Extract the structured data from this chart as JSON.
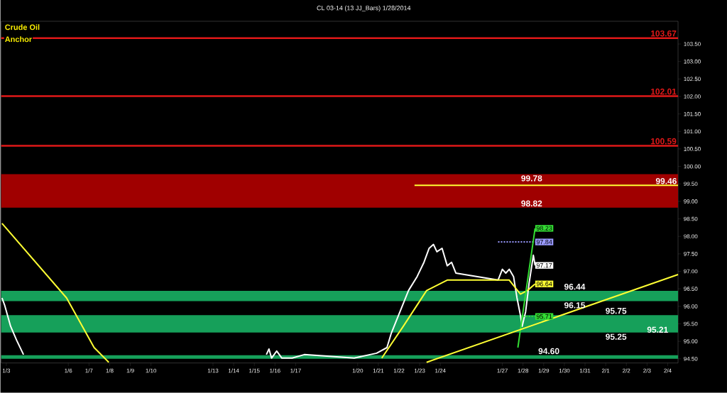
{
  "chart_data": {
    "type": "line",
    "title": "CL 03-14 (13 JJ_Bars)  1/28/2014",
    "xlim": [
      "2014-01-02T18:00",
      "2014-02-04T12:00"
    ],
    "ylim": [
      94.38,
      104.15
    ],
    "xticks": [
      {
        "value": "2014-01-03",
        "label": "1/3"
      },
      {
        "value": "2014-01-06",
        "label": "1/6"
      },
      {
        "value": "2014-01-07",
        "label": "1/7"
      },
      {
        "value": "2014-01-08",
        "label": "1/8"
      },
      {
        "value": "2014-01-09",
        "label": "1/9"
      },
      {
        "value": "2014-01-10",
        "label": "1/10"
      },
      {
        "value": "2014-01-13",
        "label": "1/13"
      },
      {
        "value": "2014-01-14",
        "label": "1/14"
      },
      {
        "value": "2014-01-15",
        "label": "1/15"
      },
      {
        "value": "2014-01-16",
        "label": "1/16"
      },
      {
        "value": "2014-01-17",
        "label": "1/17"
      },
      {
        "value": "2014-01-20",
        "label": "1/20"
      },
      {
        "value": "2014-01-21",
        "label": "1/21"
      },
      {
        "value": "2014-01-22",
        "label": "1/22"
      },
      {
        "value": "2014-01-23",
        "label": "1/23"
      },
      {
        "value": "2014-01-24",
        "label": "1/24"
      },
      {
        "value": "2014-01-27",
        "label": "1/27"
      },
      {
        "value": "2014-01-28",
        "label": "1/28"
      },
      {
        "value": "2014-01-29",
        "label": "1/29"
      },
      {
        "value": "2014-01-30",
        "label": "1/30"
      },
      {
        "value": "2014-01-31",
        "label": "1/31"
      },
      {
        "value": "2014-02-01",
        "label": "2/1"
      },
      {
        "value": "2014-02-02",
        "label": "2/2"
      },
      {
        "value": "2014-02-03",
        "label": "2/3"
      },
      {
        "value": "2014-02-04",
        "label": "2/4"
      }
    ],
    "yticks": [
      {
        "value": 94.5,
        "label": "94.50"
      },
      {
        "value": 95.0,
        "label": "95.00"
      },
      {
        "value": 95.5,
        "label": "95.50"
      },
      {
        "value": 96.0,
        "label": "96.00"
      },
      {
        "value": 96.5,
        "label": "96.50"
      },
      {
        "value": 97.0,
        "label": "97.00"
      },
      {
        "value": 97.5,
        "label": "97.50"
      },
      {
        "value": 98.0,
        "label": "98.00"
      },
      {
        "value": 98.5,
        "label": "98.50"
      },
      {
        "value": 99.0,
        "label": "99.00"
      },
      {
        "value": 99.5,
        "label": "99.50"
      },
      {
        "value": 100.0,
        "label": "100.00"
      },
      {
        "value": 100.5,
        "label": "100.50"
      },
      {
        "value": 101.0,
        "label": "101.00"
      },
      {
        "value": 101.5,
        "label": "101.50"
      },
      {
        "value": 102.0,
        "label": "102.00"
      },
      {
        "value": 102.5,
        "label": "102.50"
      },
      {
        "value": 103.0,
        "label": "103.00"
      },
      {
        "value": 103.5,
        "label": "103.50"
      }
    ],
    "series": [
      {
        "color": "#ffffff",
        "x": [
          "2014-01-02T19:00",
          "2014-01-02T22:00",
          "2014-01-03T05:00",
          "2014-01-03T12:00",
          "2014-01-03T20:00",
          "2014-01-10T00:00",
          "2014-01-15T14:00",
          "2014-01-15T17:00",
          "2014-01-15T20:00",
          "2014-01-16T02:00",
          "2014-01-16T08:00",
          "2014-01-16T20:00",
          "2014-01-17T10:00",
          "2014-01-19T20:00",
          "2014-01-20T22:00",
          "2014-01-21T10:00",
          "2014-01-21T15:00",
          "2014-01-22T01:00",
          "2014-01-22T11:00",
          "2014-01-22T21:00",
          "2014-01-23T05:00",
          "2014-01-23T11:00",
          "2014-01-23T16:00",
          "2014-01-23T20:00",
          "2014-01-24T02:00",
          "2014-01-24T08:00",
          "2014-01-24T13:00",
          "2014-01-24T18:00",
          "2014-01-26T19:00",
          "2014-01-27T00:00",
          "2014-01-27T04:00",
          "2014-01-27T08:00",
          "2014-01-27T13:00",
          "2014-01-27T17:00",
          "2014-01-27T21:00",
          "2014-01-27T23:00",
          "2014-01-28T01:00",
          "2014-01-28T03:00",
          "2014-01-28T07:00",
          "2014-01-28T12:00",
          "2014-01-28T14:00"
        ],
        "values": [
          96.24,
          96.04,
          95.43,
          95.03,
          94.62,
          null,
          94.62,
          94.78,
          94.52,
          94.72,
          94.52,
          94.52,
          94.62,
          94.52,
          94.66,
          94.82,
          95.23,
          95.84,
          96.45,
          96.85,
          97.26,
          97.66,
          97.77,
          97.56,
          97.66,
          97.16,
          97.26,
          96.95,
          96.75,
          97.06,
          96.95,
          97.06,
          96.85,
          96.24,
          95.74,
          95.43,
          95.64,
          95.84,
          96.65,
          97.46,
          97.17
        ],
        "value_labels": [
          null,
          null,
          null,
          null,
          null,
          null,
          null,
          null,
          null,
          null,
          null,
          null,
          null,
          null,
          null,
          null,
          null,
          null,
          null,
          null,
          null,
          null,
          null,
          null,
          null,
          null,
          null,
          null,
          null,
          null,
          null,
          null,
          null,
          null,
          null,
          null,
          null,
          null,
          null,
          null,
          "97.17"
        ]
      },
      {
        "color": "#ffff33",
        "x": [
          "2014-01-02T19:00",
          "2014-01-05T22:00",
          "2014-01-07T06:00",
          "2014-01-07T23:00",
          "2014-01-12T00:00",
          "2014-01-21T04:00",
          "2014-01-22T05:00",
          "2014-01-23T08:00",
          "2014-01-24T08:00",
          "2014-01-26T19:00",
          "2014-01-27T08:00",
          "2014-01-27T21:00",
          "2014-01-28T05:00",
          "2014-01-28T14:00"
        ],
        "values": [
          98.37,
          96.24,
          94.82,
          94.4,
          null,
          94.52,
          95.43,
          96.45,
          96.75,
          96.75,
          96.75,
          96.35,
          96.45,
          96.64
        ],
        "value_labels": [
          null,
          null,
          null,
          null,
          null,
          null,
          null,
          null,
          null,
          null,
          null,
          null,
          null,
          "96.64"
        ]
      },
      {
        "color": "#9999ff",
        "line_style": "dotted",
        "x": [
          "2014-01-26T19:00",
          "2014-01-28T14:00"
        ],
        "values": [
          97.84,
          97.84
        ],
        "value_labels": [
          null,
          "97.84"
        ]
      },
      {
        "color": "#33dd33",
        "x": [
          "2014-01-27T18:00",
          "2014-01-28T14:00"
        ],
        "values": [
          94.82,
          98.23
        ],
        "value_labels": [
          null,
          "98.23"
        ]
      },
      {
        "color": "#33dd33",
        "line_style": "dotted",
        "x": [
          "2014-01-28T00:00",
          "2014-01-28T14:00"
        ],
        "values": [
          95.71,
          95.71
        ],
        "value_labels": [
          null,
          "95.71"
        ]
      },
      {
        "color": "#ffff33",
        "x": [
          "2014-01-22T18:00",
          "2014-02-04T12:00"
        ],
        "values": [
          99.46,
          99.46
        ]
      },
      {
        "color": "#ffff33",
        "x": [
          "2014-01-23T08:00",
          "2014-02-04T12:00"
        ],
        "values": [
          94.4,
          96.91
        ]
      }
    ],
    "ref_lines": [
      {
        "axis": "y",
        "value": 103.67,
        "label": "103.67",
        "color": "#e01818"
      },
      {
        "axis": "y",
        "value": 102.01,
        "label": "102.01",
        "color": "#e01818"
      },
      {
        "axis": "y",
        "value": 100.59,
        "label": "100.59",
        "color": "#e01818"
      }
    ],
    "bands": [
      {
        "axis": "y",
        "from": 98.82,
        "to": 99.78,
        "color": "#a00000"
      },
      {
        "axis": "y",
        "from": 96.15,
        "to": 96.44,
        "color": "#16a05a"
      },
      {
        "axis": "y",
        "from": 95.25,
        "to": 95.75,
        "color": "#16a05a"
      },
      {
        "axis": "y",
        "from": 94.5,
        "to": 94.6,
        "color": "#16a05a"
      }
    ],
    "annotations": [
      "Crude Oil",
      "Anchor",
      {
        "text": "99.78",
        "x": "2014-01-28T10:00",
        "y": 99.78
      },
      {
        "text": "98.82",
        "x": "2014-01-28T10:00",
        "y": 98.82
      },
      {
        "text": "99.46",
        "x": "2014-02-04T12:00",
        "y": 99.46
      },
      {
        "text": "96.44",
        "x": "2014-01-30T12:00",
        "y": 96.44
      },
      {
        "text": "96.15",
        "x": "2014-01-30T12:00",
        "y": 96.15
      },
      {
        "text": "95.75",
        "x": "2014-02-01T12:00",
        "y": 95.75
      },
      {
        "text": "95.25",
        "x": "2014-02-01T12:00",
        "y": 95.25
      },
      {
        "text": "94.60",
        "x": "2014-01-29T06:00",
        "y": 94.6
      },
      {
        "text": "95.21",
        "x": "2014-02-04T02:00",
        "y": 95.21
      }
    ]
  }
}
